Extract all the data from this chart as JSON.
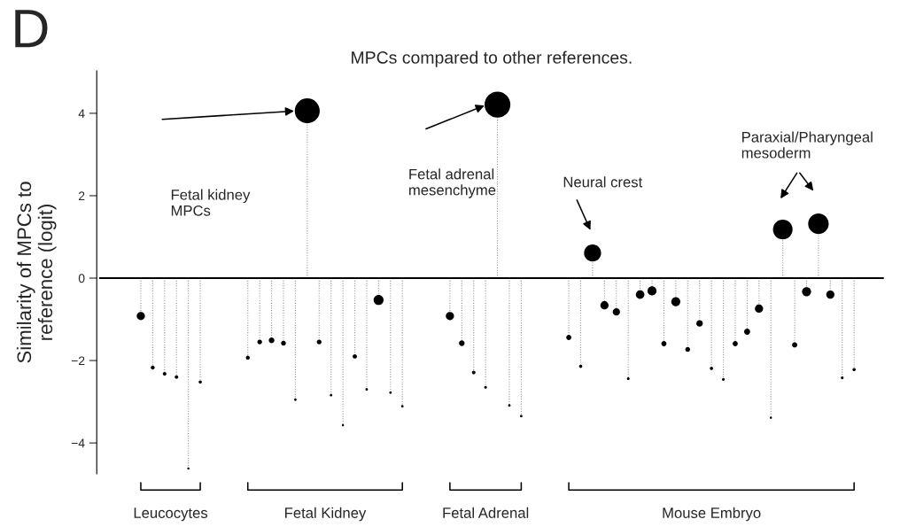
{
  "chart_data": {
    "type": "lollipop",
    "title": "MPCs compared to other references.",
    "ylabel": "Similarity of MPCs to\nreference (logit)",
    "categories": [
      null,
      null,
      null,
      null,
      null,
      null,
      null,
      null,
      null,
      null,
      null,
      null,
      null,
      null,
      null,
      null,
      null,
      null,
      null,
      null,
      null,
      null,
      null,
      null,
      null,
      null,
      null,
      null,
      null,
      null,
      null,
      null,
      null,
      null,
      null,
      null,
      null,
      null,
      null,
      null,
      null,
      null,
      null,
      null,
      null,
      null,
      null,
      null,
      null,
      null,
      null,
      null,
      null,
      null,
      null,
      null,
      null,
      null,
      null,
      null,
      null,
      null,
      null,
      null,
      null,
      null
    ],
    "series": [
      {
        "color": "#000000",
        "values": [
          null,
          null,
          null,
          -0.92,
          -2.17,
          -2.32,
          -2.4,
          -4.62,
          -2.52,
          null,
          null,
          null,
          -1.93,
          -1.55,
          -1.51,
          -1.58,
          -2.95,
          4.06,
          -1.55,
          -2.84,
          -3.57,
          -1.9,
          -2.7,
          -0.53,
          -2.78,
          -3.11,
          null,
          null,
          null,
          -0.92,
          -1.58,
          -2.29,
          -2.65,
          4.21,
          -3.09,
          -3.35,
          null,
          null,
          null,
          -1.44,
          -2.14,
          0.61,
          -0.66,
          -0.82,
          -2.44,
          -0.4,
          -0.31,
          -1.59,
          -0.57,
          -1.73,
          -1.1,
          -2.19,
          -2.46,
          -1.59,
          -1.3,
          -0.74,
          -3.39,
          1.18,
          -1.62,
          -0.33,
          1.32,
          -0.4,
          -2.42,
          -2.22,
          null,
          null
        ],
        "sizes": [
          null,
          null,
          null,
          0.096,
          0.019,
          0.015,
          0.015,
          0.003,
          0.011,
          null,
          null,
          null,
          0.019,
          0.03,
          0.043,
          0.03,
          0.005,
          0.932,
          0.03,
          0.005,
          0.003,
          0.024,
          0.005,
          0.144,
          0.005,
          0.005,
          null,
          null,
          null,
          0.096,
          0.043,
          0.015,
          0.007,
          1,
          0.005,
          0.005,
          null,
          null,
          null,
          0.036,
          0.011,
          0.429,
          0.096,
          0.076,
          0.007,
          0.107,
          0.119,
          0.036,
          0.119,
          0.03,
          0.058,
          0.011,
          0.007,
          0.036,
          0.05,
          0.096,
          0.003,
          0.575,
          0.036,
          0.119,
          0.629,
          0.096,
          0.007,
          0.011,
          null,
          null
        ]
      }
    ],
    "ylim": [
      -4.75,
      5.03
    ],
    "yticks": [
      {
        "value": -4,
        "label": "−4"
      },
      {
        "value": -2,
        "label": "−2"
      },
      0,
      2,
      4
    ],
    "tick_labels": "y",
    "ref_lines": [
      {
        "axis": "y",
        "value": 0,
        "color": "#000000"
      }
    ],
    "annotations": [
      "D",
      "Fetal kidney\nMPCs",
      "Fetal adrenal\nmesenchyme",
      "Neural crest",
      "Paraxial/Pharyngeal\nmesoderm",
      "Leucocytes",
      "Fetal Kidney",
      "Fetal Adrenal",
      "Mouse Embryo"
    ]
  }
}
